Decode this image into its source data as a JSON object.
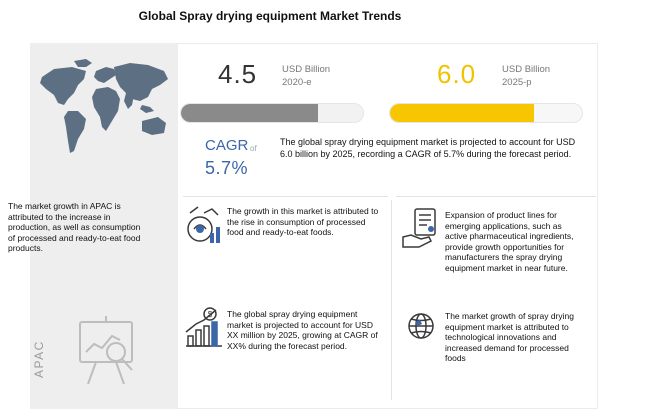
{
  "title": "Global Spray drying equipment Market Trends",
  "stats": {
    "value_2020": "4.5",
    "unit_2020": "USD Billion",
    "year_2020": "2020-e",
    "value_2025": "6.0",
    "unit_2025": "USD Billion",
    "year_2025": "2025-p",
    "bar_fill_2020": 0.75,
    "bar_fill_2025": 0.75
  },
  "cagr": {
    "label": "CAGR",
    "of_text": "of",
    "value": "5.7%",
    "description": "The global spray drying equipment market is projected to account for USD 6.0 billion by 2025, recording a CAGR of 5.7% during the forecast period."
  },
  "apac": {
    "label": "APAC",
    "text": "The market growth in APAC is attributed to the increase in production, as well as consumption of processed and ready-to-eat food products."
  },
  "insights": [
    {
      "icon": "food-growth-icon",
      "text": "The growth in this market is attributed to the rise in consumption of processed food and ready-to-eat foods."
    },
    {
      "icon": "hand-document-icon",
      "text": "Expansion of product lines for emerging applications, such as active pharmaceutical ingredients, provide growth opportunities for manufacturers the spray drying equipment market in near future."
    },
    {
      "icon": "money-growth-chart-icon",
      "text": "The global spray drying equipment market is projected to account for USD XX million by 2025, growing at CAGR of XX% during the forecast period."
    },
    {
      "icon": "globe-icon",
      "text": "The market growth of spray drying equipment market is attributed to technological innovations and increased demand for processed foods"
    }
  ],
  "colors": {
    "accent_blue": "#3b66a8",
    "accent_yellow": "#f7c600",
    "bar_gray": "#8a8a8a",
    "panel_gray": "#eeeeee"
  }
}
